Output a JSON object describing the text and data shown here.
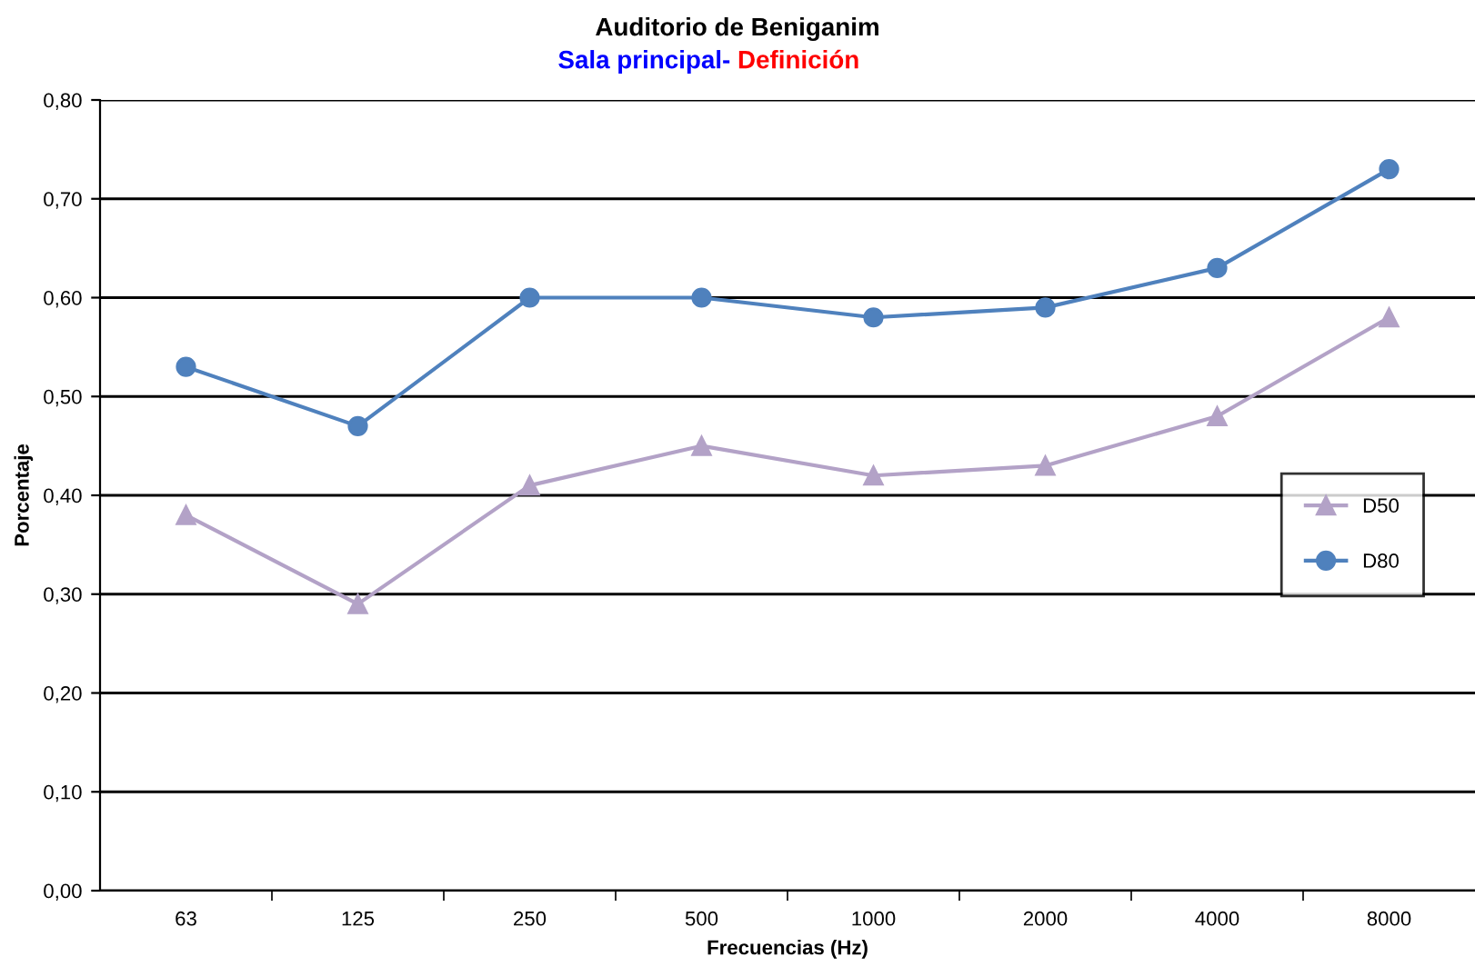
{
  "chart_data": {
    "type": "line",
    "title": "Auditorio de Beniganim",
    "subtitle": "Sala principal-",
    "annotations": [
      "Definición"
    ],
    "xlabel": "Frecuencias (Hz)",
    "ylabel": "Porcentaje",
    "categories": [
      "63",
      "125",
      "250",
      "500",
      "1000",
      "2000",
      "4000",
      "8000"
    ],
    "series": [
      {
        "name": "D50",
        "color": "#b3a2c7",
        "marker": "triangle",
        "values": [
          0.38,
          0.29,
          0.41,
          0.45,
          0.42,
          0.43,
          0.48,
          0.58
        ]
      },
      {
        "name": "D80",
        "color": "#4f81bd",
        "marker": "circle",
        "values": [
          0.53,
          0.47,
          0.6,
          0.6,
          0.58,
          0.59,
          0.63,
          0.73
        ]
      }
    ],
    "ylim": [
      0,
      0.8
    ],
    "yticks": [
      {
        "value": 0,
        "label": "0,00"
      },
      {
        "value": 0.1,
        "label": "0,10"
      },
      {
        "value": 0.2,
        "label": "0,20"
      },
      {
        "value": 0.3,
        "label": "0,30"
      },
      {
        "value": 0.4,
        "label": "0,40"
      },
      {
        "value": 0.5,
        "label": "0,50"
      },
      {
        "value": 0.6,
        "label": "0,60"
      },
      {
        "value": 0.7,
        "label": "0,70"
      },
      {
        "value": 0.8,
        "label": "0,80"
      }
    ],
    "grid": "y",
    "legend": "right",
    "line_style": "solid"
  }
}
